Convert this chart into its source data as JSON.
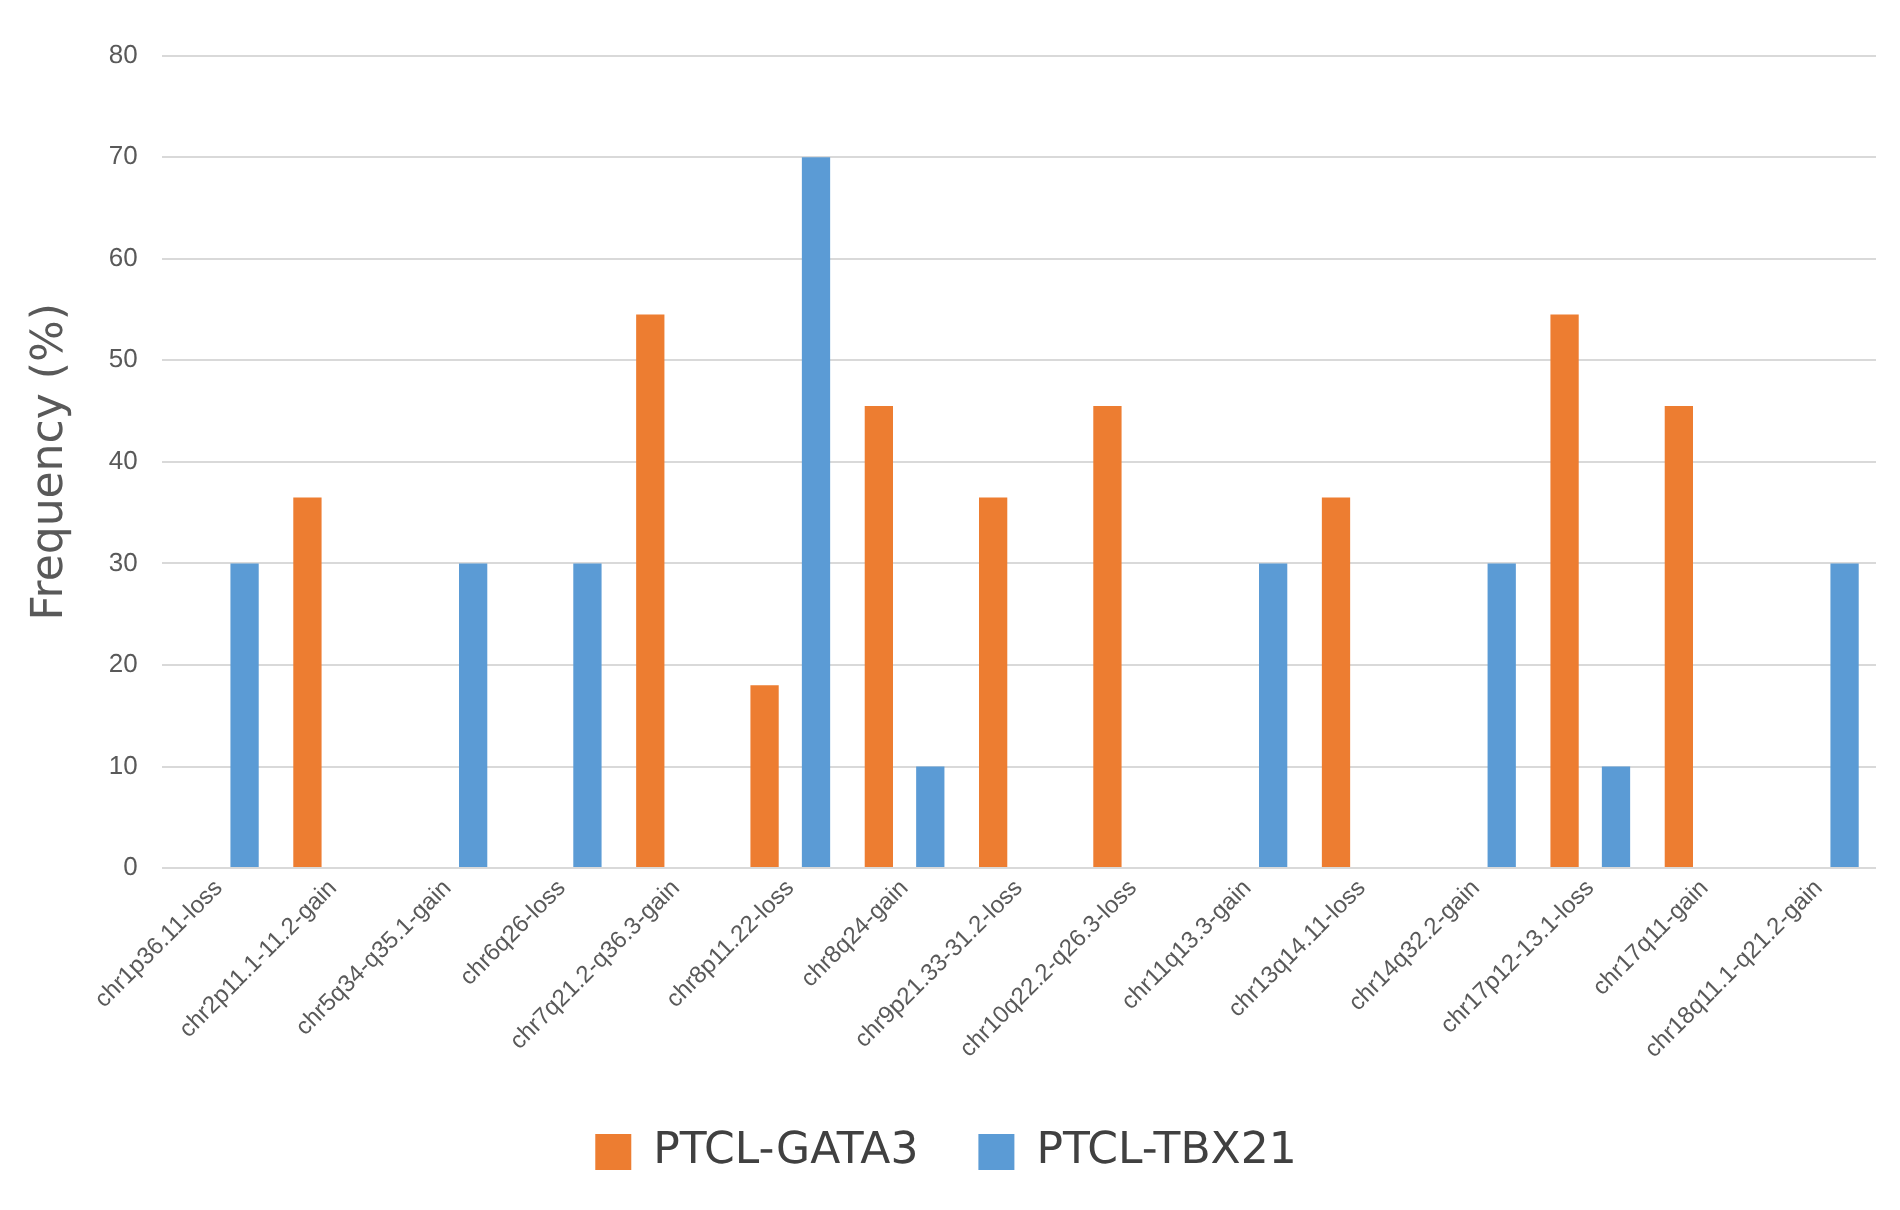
{
  "chart_data": {
    "type": "bar",
    "ylabel": "Frequency (%)",
    "categories": [
      "chr1p36.11-loss",
      "chr2p11.1-11.2-gain",
      "chr5q34-q35.1-gain",
      "chr6q26-loss",
      "chr7q21.2-q36.3-gain",
      "chr8p11.22-loss",
      "chr8q24-gain",
      "chr9p21.33-31.2-loss",
      "chr10q22.2-q26.3-loss",
      "chr11q13.3-gain",
      "chr13q14.11-loss",
      "chr14q32.2-gain",
      "chr17p12-13.1-loss",
      "chr17q11-gain",
      "chr18q11.1-q21.2-gain"
    ],
    "series": [
      {
        "name": "PTCL-GATA3",
        "color": "#ed7d31",
        "values": [
          0,
          36.5,
          0,
          0,
          54.5,
          18,
          45.5,
          36.5,
          45.5,
          0,
          36.5,
          0,
          54.5,
          45.5,
          0
        ]
      },
      {
        "name": "PTCL-TBX21",
        "color": "#5b9bd5",
        "values": [
          30,
          0,
          30,
          30,
          0,
          70,
          10,
          0,
          0,
          30,
          0,
          30,
          10,
          0,
          30
        ]
      }
    ],
    "ylim": [
      0,
      80
    ],
    "yticks": [
      0,
      10,
      20,
      30,
      40,
      50,
      60,
      70,
      80
    ],
    "grid": "y",
    "legend": "bottom"
  }
}
